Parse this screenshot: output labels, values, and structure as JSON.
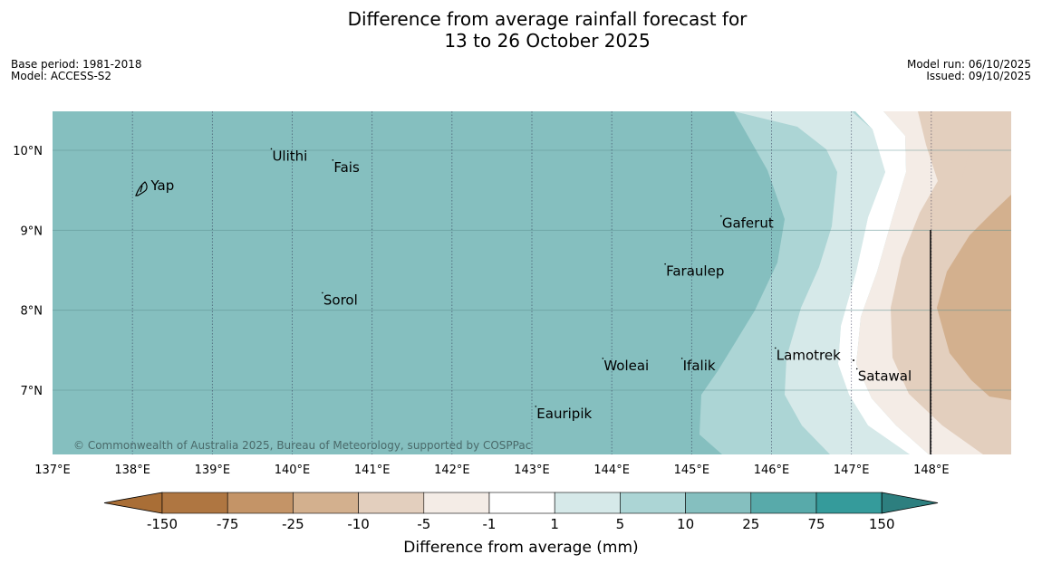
{
  "title": {
    "line1": "Difference from average rainfall forecast for",
    "line2": "13 to 26 October 2025"
  },
  "meta": {
    "base_period": "Base period: 1981-2018",
    "model": "Model: ACCESS-S2",
    "model_run": "Model run: 06/10/2025",
    "issued": "Issued: 09/10/2025"
  },
  "map": {
    "lon_labels": [
      "137°E",
      "138°E",
      "139°E",
      "140°E",
      "141°E",
      "142°E",
      "143°E",
      "144°E",
      "145°E",
      "146°E",
      "147°E",
      "148°E"
    ],
    "lat_labels": [
      "10°N",
      "9°N",
      "8°N",
      "7°N"
    ],
    "places": [
      "Ulithi",
      "Fais",
      "Yap",
      "Gaferut",
      "Faraulep",
      "Sorol",
      "Lamotrek",
      "Woleai",
      "Ifalik",
      "Satawal",
      "Eauripik"
    ],
    "copyright": "© Commonwealth of Australia 2025, Bureau of Meteorology, supported by COSPPac"
  },
  "legend": {
    "tick_labels": [
      "-150",
      "-75",
      "-25",
      "-10",
      "-5",
      "-1",
      "1",
      "5",
      "10",
      "25",
      "75",
      "150"
    ],
    "label": "Difference from average (mm)",
    "colors": [
      "#a96e36",
      "#af7641",
      "#c49467",
      "#d3b08e",
      "#e3cfbe",
      "#f4ece6",
      "#ffffff",
      "#d6e9e9",
      "#acd5d5",
      "#85bfbf",
      "#58aaaa",
      "#359b9b",
      "#2d7f7f"
    ]
  }
}
